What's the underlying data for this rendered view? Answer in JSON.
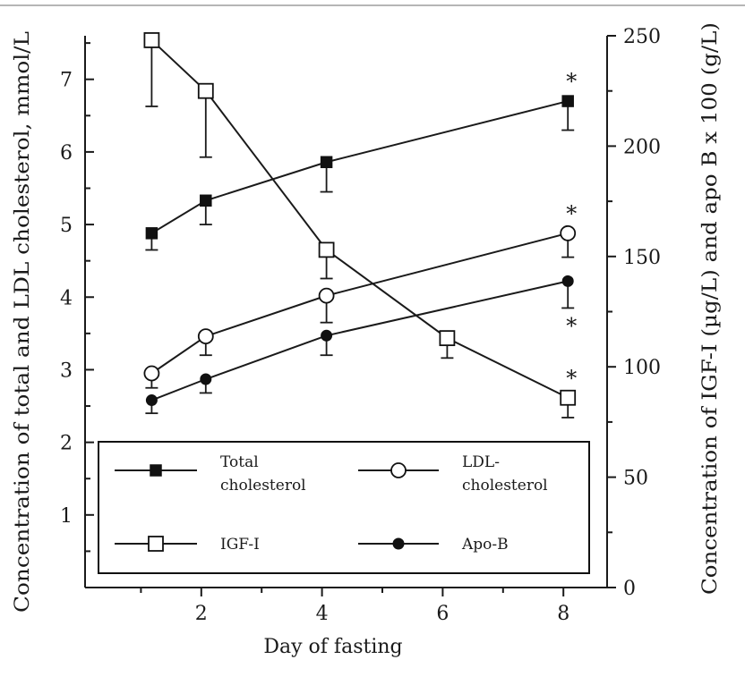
{
  "chart_data": {
    "type": "line",
    "xlabel": "Day of fasting",
    "ylabel_left": "Concentration of total and LDL cholesterol, mmol/L",
    "ylabel_right": "Concentration of  IGF-I (µg/L) and apo B x 100 (g/L)",
    "x_ticks": [
      2,
      4,
      6,
      8
    ],
    "y_left_ticks": [
      1,
      2,
      3,
      4,
      5,
      6,
      7
    ],
    "y_right_ticks": [
      0,
      50,
      100,
      150,
      200,
      250
    ],
    "xlim": [
      0,
      8.4
    ],
    "ylim_left": [
      0,
      7.6
    ],
    "ylim_right": [
      0,
      250
    ],
    "grid": false,
    "legend_position": "bottom",
    "series": [
      {
        "name": "Total cholesterol",
        "legend_lines": [
          "Total",
          "cholesterol"
        ],
        "axis": "left",
        "marker": "filled-square",
        "x": [
          1,
          2,
          4,
          8
        ],
        "y": [
          4.88,
          5.33,
          5.86,
          6.7
        ],
        "err_low": [
          4.65,
          5.0,
          5.45,
          6.3
        ],
        "stars": [
          false,
          false,
          false,
          true
        ]
      },
      {
        "name": "LDL-cholesterol",
        "legend_lines": [
          "LDL-",
          "cholesterol"
        ],
        "axis": "left",
        "marker": "open-circle",
        "x": [
          1,
          2,
          4,
          8
        ],
        "y": [
          2.95,
          3.46,
          4.02,
          4.88
        ],
        "err_low": [
          2.75,
          3.2,
          3.65,
          4.55
        ],
        "stars": [
          false,
          false,
          false,
          true
        ]
      },
      {
        "name": "IGF-I",
        "legend_lines": [
          "IGF-I"
        ],
        "axis": "right",
        "marker": "open-square",
        "x": [
          1,
          2,
          4,
          6,
          8
        ],
        "y": [
          248,
          225,
          153,
          113,
          86
        ],
        "err_low": [
          218,
          195,
          140,
          104,
          77
        ],
        "stars": [
          false,
          false,
          false,
          false,
          true
        ]
      },
      {
        "name": "Apo-B",
        "legend_lines": [
          "Apo-B"
        ],
        "axis": "left",
        "marker": "filled-circle",
        "x": [
          1,
          2,
          4,
          8
        ],
        "y": [
          2.58,
          2.87,
          3.47,
          4.22
        ],
        "err_low": [
          2.4,
          2.68,
          3.2,
          3.85
        ],
        "stars": [
          false,
          false,
          false,
          true
        ]
      }
    ],
    "star_symbol": "*"
  }
}
